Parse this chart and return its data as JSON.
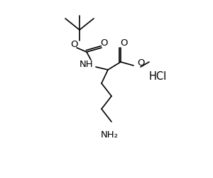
{
  "background": "#ffffff",
  "line_color": "#000000",
  "line_width": 1.2,
  "font_size": 9.5,
  "hcl_label": "HCl",
  "nh_label": "NH",
  "nh2_label": "NH₂",
  "o_label": "O"
}
